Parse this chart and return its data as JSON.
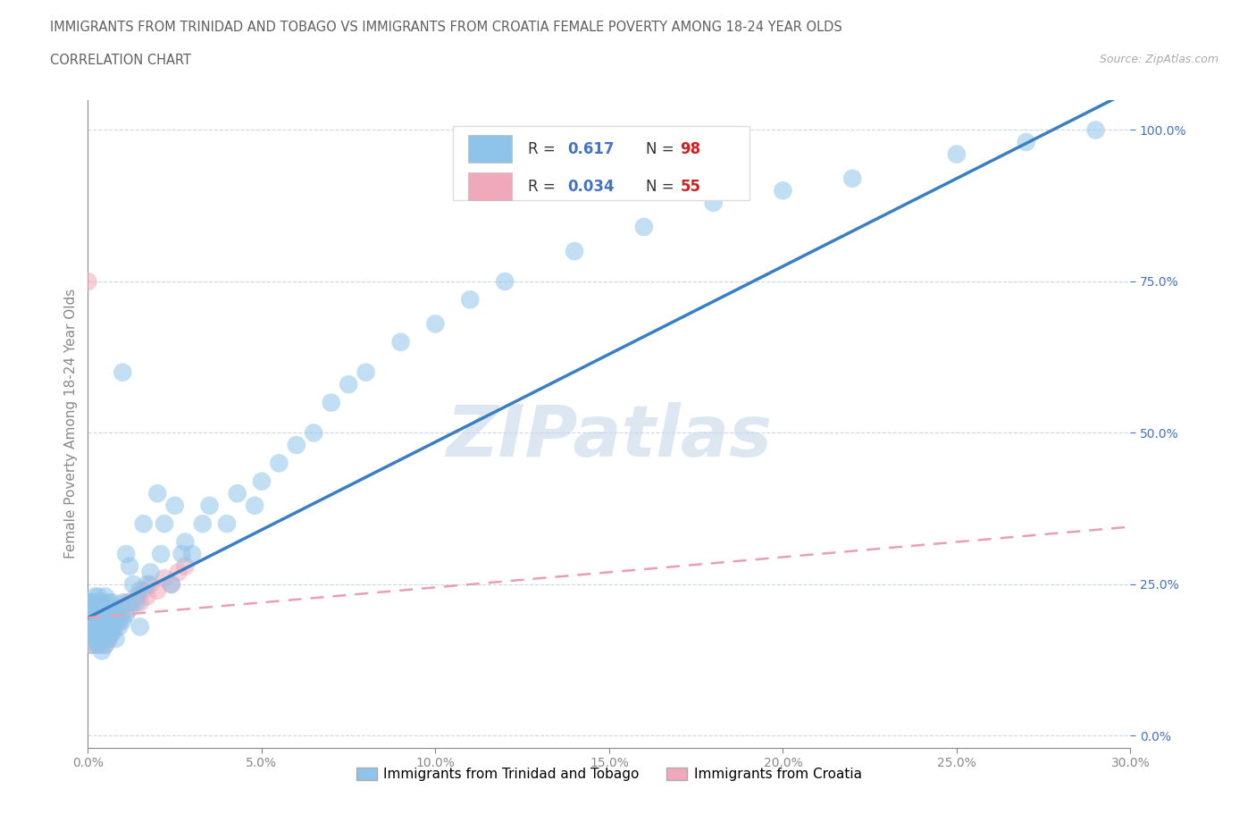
{
  "title_line1": "IMMIGRANTS FROM TRINIDAD AND TOBAGO VS IMMIGRANTS FROM CROATIA FEMALE POVERTY AMONG 18-24 YEAR OLDS",
  "title_line2": "CORRELATION CHART",
  "source_text": "Source: ZipAtlas.com",
  "watermark": "ZIPatlas",
  "series": [
    {
      "name": "Immigrants from Trinidad and Tobago",
      "color": "#8fc4ea",
      "R": 0.617,
      "N": 98,
      "trend_style": "solid",
      "trend_color": "#3a7fc1",
      "x_vals": [
        0.0,
        0.0,
        0.0,
        0.001,
        0.001,
        0.001,
        0.001,
        0.001,
        0.001,
        0.002,
        0.002,
        0.002,
        0.002,
        0.002,
        0.002,
        0.002,
        0.002,
        0.003,
        0.003,
        0.003,
        0.003,
        0.003,
        0.003,
        0.003,
        0.004,
        0.004,
        0.004,
        0.004,
        0.004,
        0.004,
        0.004,
        0.004,
        0.005,
        0.005,
        0.005,
        0.005,
        0.005,
        0.005,
        0.006,
        0.006,
        0.006,
        0.006,
        0.006,
        0.007,
        0.007,
        0.007,
        0.007,
        0.008,
        0.008,
        0.008,
        0.009,
        0.009,
        0.01,
        0.01,
        0.01,
        0.011,
        0.011,
        0.012,
        0.012,
        0.013,
        0.014,
        0.015,
        0.015,
        0.016,
        0.017,
        0.018,
        0.02,
        0.021,
        0.022,
        0.024,
        0.025,
        0.027,
        0.028,
        0.03,
        0.033,
        0.035,
        0.04,
        0.043,
        0.048,
        0.05,
        0.055,
        0.06,
        0.065,
        0.07,
        0.075,
        0.08,
        0.09,
        0.1,
        0.11,
        0.12,
        0.14,
        0.16,
        0.18,
        0.2,
        0.22,
        0.25,
        0.27,
        0.29
      ],
      "y_vals": [
        0.18,
        0.2,
        0.22,
        0.15,
        0.18,
        0.2,
        0.22,
        0.17,
        0.19,
        0.16,
        0.18,
        0.2,
        0.22,
        0.17,
        0.19,
        0.21,
        0.23,
        0.15,
        0.17,
        0.19,
        0.21,
        0.23,
        0.18,
        0.2,
        0.14,
        0.16,
        0.18,
        0.2,
        0.22,
        0.17,
        0.19,
        0.21,
        0.15,
        0.17,
        0.19,
        0.21,
        0.23,
        0.18,
        0.16,
        0.18,
        0.2,
        0.22,
        0.17,
        0.18,
        0.2,
        0.22,
        0.17,
        0.19,
        0.21,
        0.16,
        0.2,
        0.18,
        0.6,
        0.19,
        0.22,
        0.3,
        0.2,
        0.28,
        0.22,
        0.25,
        0.22,
        0.24,
        0.18,
        0.35,
        0.25,
        0.27,
        0.4,
        0.3,
        0.35,
        0.25,
        0.38,
        0.3,
        0.32,
        0.3,
        0.35,
        0.38,
        0.35,
        0.4,
        0.38,
        0.42,
        0.45,
        0.48,
        0.5,
        0.55,
        0.58,
        0.6,
        0.65,
        0.68,
        0.72,
        0.75,
        0.8,
        0.84,
        0.88,
        0.9,
        0.92,
        0.96,
        0.98,
        1.0
      ]
    },
    {
      "name": "Immigrants from Croatia",
      "color": "#f0a8bb",
      "R": 0.034,
      "N": 55,
      "trend_style": "dashed",
      "trend_color": "#e8a0b0",
      "x_vals": [
        0.0,
        0.0,
        0.0,
        0.0,
        0.0,
        0.001,
        0.001,
        0.001,
        0.001,
        0.001,
        0.001,
        0.001,
        0.001,
        0.002,
        0.002,
        0.002,
        0.002,
        0.002,
        0.003,
        0.003,
        0.003,
        0.003,
        0.004,
        0.004,
        0.004,
        0.004,
        0.004,
        0.005,
        0.005,
        0.005,
        0.005,
        0.006,
        0.006,
        0.006,
        0.007,
        0.007,
        0.007,
        0.008,
        0.008,
        0.009,
        0.009,
        0.01,
        0.011,
        0.012,
        0.013,
        0.014,
        0.015,
        0.016,
        0.017,
        0.018,
        0.02,
        0.022,
        0.024,
        0.026,
        0.028
      ],
      "y_vals": [
        0.18,
        0.17,
        0.19,
        0.2,
        0.75,
        0.15,
        0.17,
        0.19,
        0.21,
        0.16,
        0.18,
        0.2,
        0.22,
        0.17,
        0.19,
        0.21,
        0.16,
        0.18,
        0.15,
        0.17,
        0.19,
        0.21,
        0.16,
        0.18,
        0.2,
        0.22,
        0.17,
        0.15,
        0.17,
        0.19,
        0.21,
        0.16,
        0.18,
        0.2,
        0.17,
        0.19,
        0.21,
        0.18,
        0.2,
        0.19,
        0.21,
        0.2,
        0.22,
        0.21,
        0.22,
        0.23,
        0.22,
        0.24,
        0.23,
        0.25,
        0.24,
        0.26,
        0.25,
        0.27,
        0.28
      ]
    }
  ],
  "blue_trend_slope": 2.9,
  "blue_trend_intercept": 0.195,
  "pink_trend_slope": 0.5,
  "pink_trend_intercept": 0.195,
  "xlim": [
    0.0,
    0.3
  ],
  "ylim": [
    -0.02,
    1.05
  ],
  "xticks": [
    0.0,
    0.05,
    0.1,
    0.15,
    0.2,
    0.25,
    0.3
  ],
  "xtick_labels": [
    "0.0%",
    "5.0%",
    "10.0%",
    "15.0%",
    "20.0%",
    "25.0%",
    "30.0%"
  ],
  "yticks": [
    0.0,
    0.25,
    0.5,
    0.75,
    1.0
  ],
  "ytick_labels": [
    "0.0%",
    "25.0%",
    "50.0%",
    "75.0%",
    "100.0%"
  ],
  "ylabel": "Female Poverty Among 18-24 Year Olds",
  "grid_color": "#ccd6e8",
  "background_color": "#ffffff",
  "title_color": "#606060",
  "axis_color": "#888888",
  "legend_R_color": "#4472c4",
  "legend_N_color": "#cc2222",
  "watermark_color": "#c5d8ea",
  "legend_box_color": "#dddddd"
}
